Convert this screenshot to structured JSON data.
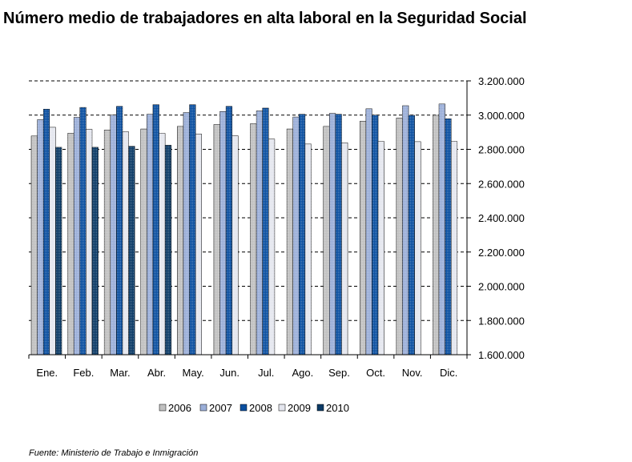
{
  "title": "Número medio de trabajadores en alta laboral en la Seguridad Social",
  "source": "Fuente: Ministerio de Trabajo e Inmigración",
  "chart_data": {
    "type": "bar",
    "categories": [
      "Ene.",
      "Feb.",
      "Mar.",
      "Abr.",
      "May.",
      "Jun.",
      "Jul.",
      "Ago.",
      "Sep.",
      "Oct.",
      "Nov.",
      "Dic."
    ],
    "series": [
      {
        "name": "2006",
        "color": "#c0c0c0",
        "values": [
          2878000,
          2894000,
          2913000,
          2919000,
          2934000,
          2945000,
          2950000,
          2919000,
          2934000,
          2964000,
          2983000,
          2999000
        ]
      },
      {
        "name": "2007",
        "color": "#9aaed8",
        "values": [
          2973000,
          2987000,
          3000000,
          3005000,
          3015000,
          3021000,
          3025000,
          2989000,
          3010000,
          3037000,
          3055000,
          3065000
        ]
      },
      {
        "name": "2008",
        "color": "#0a4fa0",
        "values": [
          3035000,
          3045000,
          3051000,
          3061000,
          3061000,
          3051000,
          3041000,
          3005000,
          3005000,
          3000000,
          2999000,
          2979000
        ]
      },
      {
        "name": "2009",
        "color": "#e4e6ee",
        "values": [
          2929000,
          2917000,
          2903000,
          2893000,
          2889000,
          2879000,
          2860000,
          2831000,
          2838000,
          2846000,
          2845000,
          2846000
        ]
      },
      {
        "name": "2010",
        "color": "#0b3a66",
        "values": [
          2812000,
          2812000,
          2818000,
          2824000,
          null,
          null,
          null,
          null,
          null,
          null,
          null,
          null
        ]
      }
    ],
    "ylim": [
      1600000,
      3200000
    ],
    "y_ticks": [
      "1.600.000",
      "1.800.000",
      "2.000.000",
      "2.200.000",
      "2.400.000",
      "2.600.000",
      "2.800.000",
      "3.000.000",
      "3.200.000"
    ],
    "y_tick_values": [
      1600000,
      1800000,
      2000000,
      2200000,
      2400000,
      2600000,
      2800000,
      3000000,
      3200000
    ],
    "y_axis_position": "right",
    "gridlines": "dashed",
    "legend": "bottom"
  }
}
